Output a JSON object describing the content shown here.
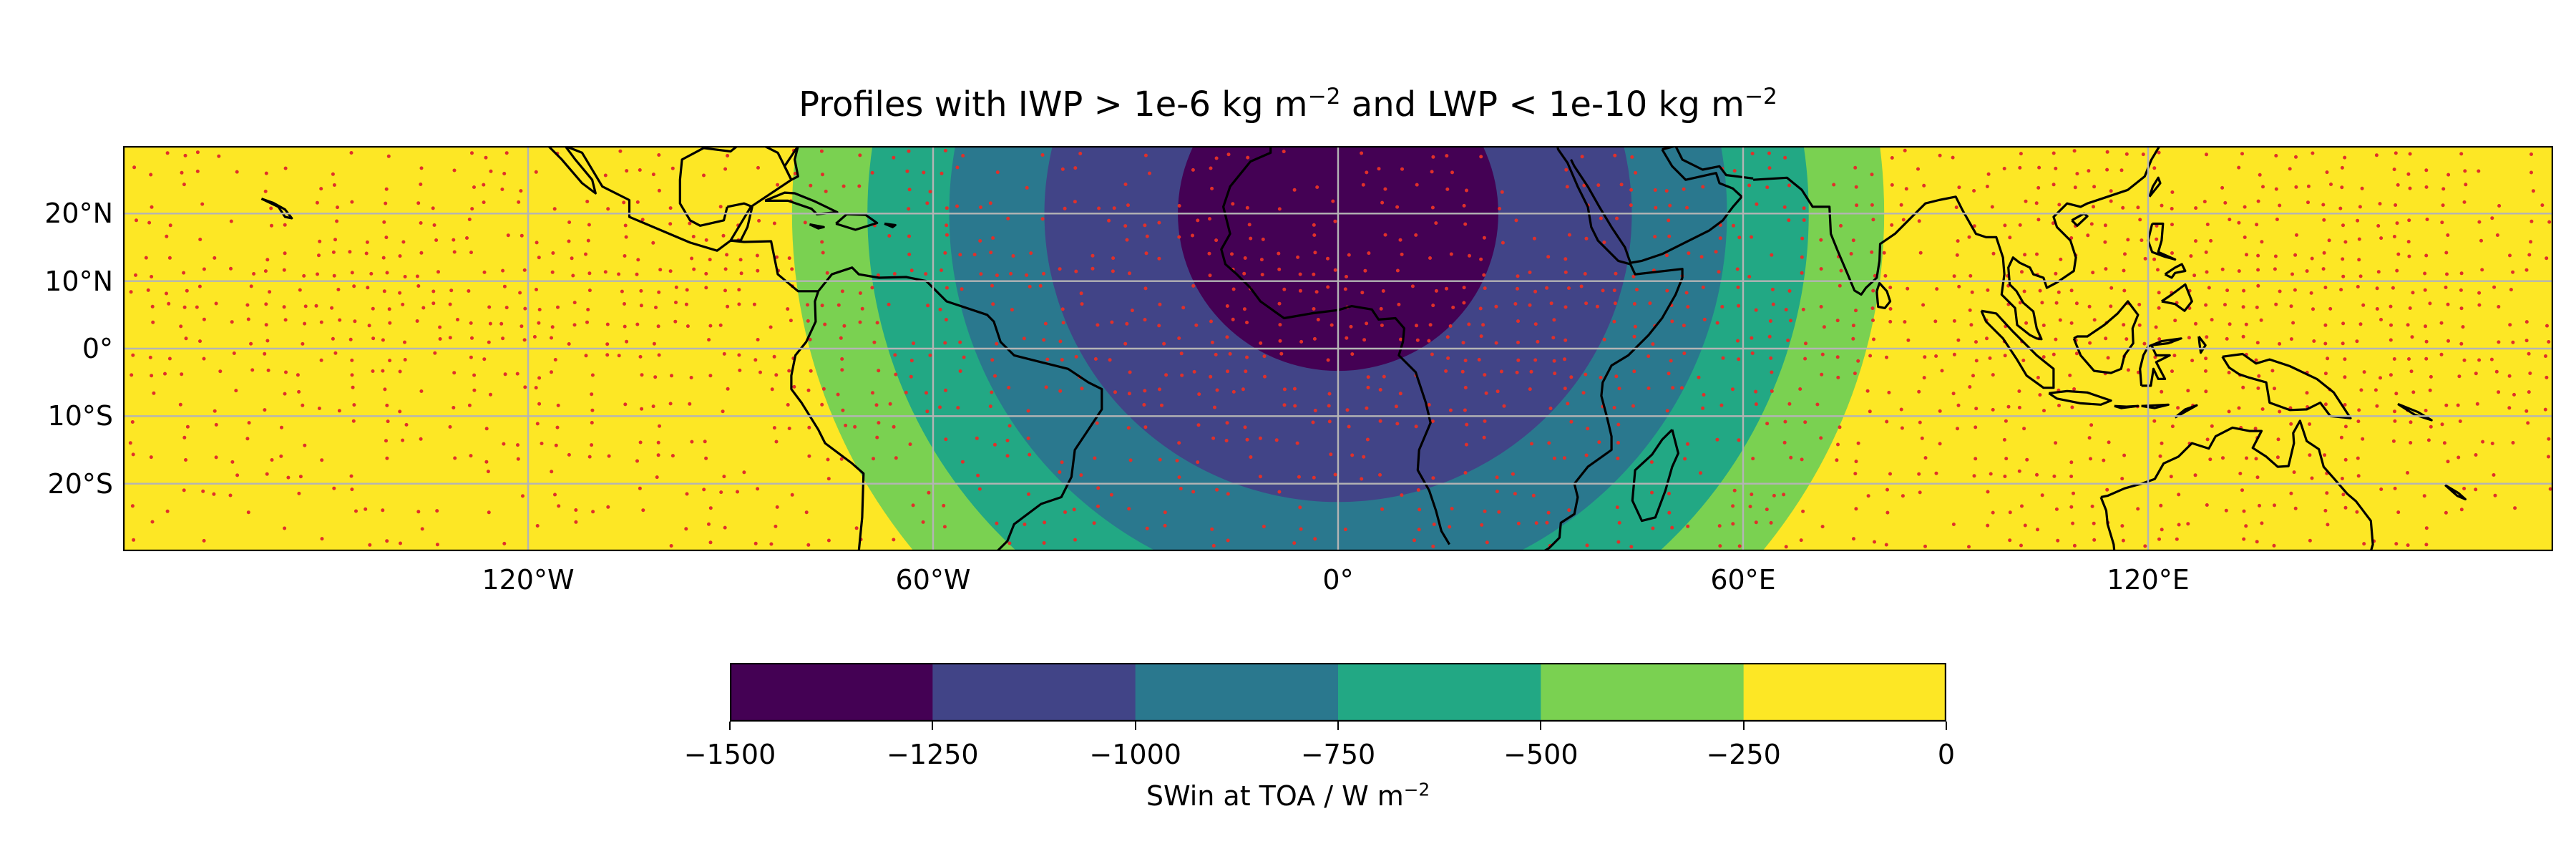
{
  "title": {
    "prefix": "Profiles with IWP > 1e-6 kg m",
    "sup1": "−2",
    "middle": " and LWP < 1e-10 kg m",
    "sup2": "−2"
  },
  "map": {
    "projection": "PlateCarree",
    "extent": {
      "lon": [
        -180,
        180
      ],
      "lat": [
        -30,
        30
      ]
    },
    "gridlines": true,
    "field_center": {
      "lon": 0,
      "lat": 20
    },
    "field_description": "SWin at TOA",
    "marker_color": "#e0302a",
    "coastline_color": "#000000",
    "x_ticks": [
      {
        "lon": -120,
        "label": "120°W"
      },
      {
        "lon": -60,
        "label": "60°W"
      },
      {
        "lon": 0,
        "label": "0°"
      },
      {
        "lon": 60,
        "label": "60°E"
      },
      {
        "lon": 120,
        "label": "120°E"
      }
    ],
    "y_ticks": [
      {
        "lat": 20,
        "label": "20°N"
      },
      {
        "lat": 10,
        "label": "10°N"
      },
      {
        "lat": 0,
        "label": "0°"
      },
      {
        "lat": -10,
        "label": "10°S"
      },
      {
        "lat": -20,
        "label": "20°S"
      }
    ]
  },
  "colorbar": {
    "levels": [
      -1500,
      -1250,
      -1000,
      -750,
      -500,
      -250,
      0
    ],
    "tick_labels": [
      "−1500",
      "−1250",
      "−1000",
      "−750",
      "−500",
      "−250",
      "0"
    ],
    "colors": [
      "#440154",
      "#414487",
      "#2a788e",
      "#22a884",
      "#7ad151",
      "#fde725"
    ],
    "label_prefix": "SWin at TOA / W m",
    "label_sup": "−2",
    "orientation": "horizontal",
    "position": "bottom"
  }
}
